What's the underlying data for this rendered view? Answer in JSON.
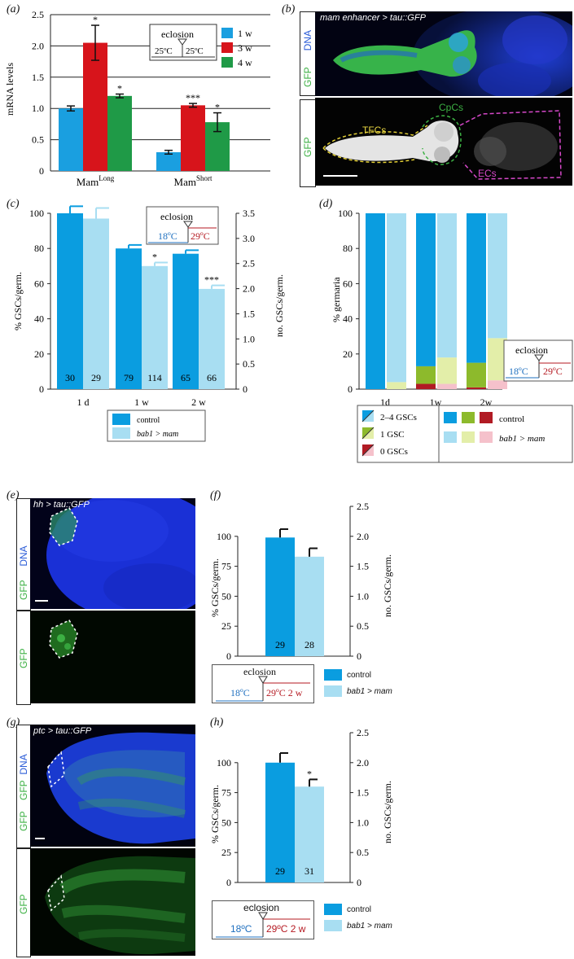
{
  "panels": {
    "a": "(a)",
    "b": "(b)",
    "c": "(c)",
    "d": "(d)",
    "e": "(e)",
    "f": "(f)",
    "g": "(g)",
    "h": "(h)"
  },
  "micrographs": {
    "b_top_title": "mam enhancer > tau::GFP",
    "b_top_side": [
      "GFP",
      "DNA"
    ],
    "b_bottom_side": "GFP",
    "b_labels": {
      "tfcs": "TFCs",
      "cpcs": "CpCs",
      "ecs": "ECs"
    },
    "e_top_title": "hh > tau::GFP",
    "e_top_side": [
      "GFP",
      "DNA"
    ],
    "e_bottom_side": "GFP",
    "g_top_title": "ptc > tau::GFP",
    "g_top_side": [
      "GFP",
      "DNA"
    ],
    "g_bottom_side": "GFP"
  },
  "colors": {
    "blue_1w": "#1a9fe0",
    "red_3w": "#d7141b",
    "green_4w": "#1f9a47",
    "control": "#0a9de0",
    "bab1": "#a8def2",
    "green_dark": "#8dba2c",
    "green_light": "#e3eea9",
    "red_dark": "#b11b24",
    "pink": "#f5c1cb",
    "temp_blue": "#1e6fbf",
    "temp_red": "#b51a22"
  },
  "legend_text": {
    "eclosion": "eclosion",
    "t25a": "25ºC",
    "t25b": "25ºC",
    "t18": "18ºC",
    "t29": "29ºC",
    "t29_2w": "29ºC 2 w",
    "control": "control",
    "bab1": "bab1 > mam",
    "gsc_2_4": "2–4 GSCs",
    "gsc_1": "1 GSC",
    "gsc_0": "0 GSCs"
  },
  "chart_data": [
    {
      "id": "a",
      "type": "bar",
      "ylabel": "mRNA levels",
      "ylim": [
        0,
        2.5
      ],
      "yticks": [
        "0",
        "0.5",
        "1.0",
        "1.5",
        "2.0",
        "2.5"
      ],
      "groups": [
        {
          "label": "Mam",
          "sup": "Long"
        },
        {
          "label": "Mam",
          "sup": "Short"
        }
      ],
      "series": [
        {
          "name": "1 w",
          "values": [
            1.0,
            0.3
          ],
          "errors": [
            0.04,
            0.03
          ],
          "stars": [
            "",
            ""
          ]
        },
        {
          "name": "3 w",
          "values": [
            2.05,
            1.05
          ],
          "errors": [
            0.28,
            0.03
          ],
          "stars": [
            "*",
            "***"
          ]
        },
        {
          "name": "4 w",
          "values": [
            1.2,
            0.78
          ],
          "errors": [
            0.03,
            0.15
          ],
          "stars": [
            "*",
            "*"
          ]
        }
      ]
    },
    {
      "id": "c",
      "type": "bar",
      "ylabel": "% GSCs/germ.",
      "ylabel_right": "no. GSCs/germ.",
      "ylim": [
        0,
        100
      ],
      "yticks": [
        "0",
        "20",
        "40",
        "60",
        "80",
        "100"
      ],
      "yticks_right": [
        "0",
        "0.5",
        "1.0",
        "1.5",
        "2.0",
        "2.5",
        "3.0",
        "3.5"
      ],
      "categories": [
        "1 d",
        "1 w",
        "2 w"
      ],
      "series": [
        {
          "name": "control",
          "values": [
            100,
            80,
            77
          ],
          "errors": [
            4,
            2,
            2
          ],
          "n": [
            "30",
            "79",
            "65"
          ],
          "stars": [
            "",
            "",
            ""
          ]
        },
        {
          "name": "bab1 > mam",
          "values": [
            97,
            70,
            57
          ],
          "errors": [
            6,
            2,
            2
          ],
          "n": [
            "29",
            "114",
            "66"
          ],
          "stars": [
            "",
            "*",
            "***"
          ]
        }
      ]
    },
    {
      "id": "d",
      "type": "bar",
      "stacked": true,
      "ylabel": "% germaria",
      "ylim": [
        0,
        100
      ],
      "yticks": [
        "0",
        "20",
        "40",
        "60",
        "80",
        "100"
      ],
      "categories": [
        "1d",
        "1w",
        "2w"
      ],
      "series": [
        {
          "name": "control",
          "zero": [
            0,
            3,
            1
          ],
          "one": [
            0,
            10,
            14
          ],
          "two_four": [
            100,
            87,
            85
          ]
        },
        {
          "name": "bab1 > mam",
          "zero": [
            0,
            3,
            5
          ],
          "one": [
            4,
            15,
            24
          ],
          "two_four": [
            96,
            82,
            71
          ]
        }
      ]
    },
    {
      "id": "f",
      "type": "bar",
      "ylabel": "% GSCs/germ.",
      "ylabel_right": "no. GSCs/germ.",
      "ylim": [
        0,
        125
      ],
      "yticks": [
        "0",
        "25",
        "50",
        "75",
        "100"
      ],
      "yticks_right": [
        "0",
        "0.5",
        "1.0",
        "1.5",
        "2.0",
        "2.5"
      ],
      "series": [
        {
          "name": "control",
          "values": [
            99
          ],
          "errors": [
            7
          ],
          "n": [
            "29"
          ],
          "stars": [
            ""
          ]
        },
        {
          "name": "bab1 > mam",
          "values": [
            83
          ],
          "errors": [
            7
          ],
          "n": [
            "28"
          ],
          "stars": [
            ""
          ]
        }
      ]
    },
    {
      "id": "h",
      "type": "bar",
      "ylabel": "% GSCs/germ.",
      "ylabel_right": "no. GSCs/germ.",
      "ylim": [
        0,
        125
      ],
      "yticks": [
        "0",
        "25",
        "50",
        "75",
        "100"
      ],
      "yticks_right": [
        "0",
        "0.5",
        "1.0",
        "1.5",
        "2.0",
        "2.5"
      ],
      "series": [
        {
          "name": "control",
          "values": [
            100
          ],
          "errors": [
            8
          ],
          "n": [
            "29"
          ],
          "stars": [
            ""
          ]
        },
        {
          "name": "bab1 > mam",
          "values": [
            80
          ],
          "errors": [
            6
          ],
          "n": [
            "31"
          ],
          "stars": [
            "*"
          ]
        }
      ]
    }
  ]
}
